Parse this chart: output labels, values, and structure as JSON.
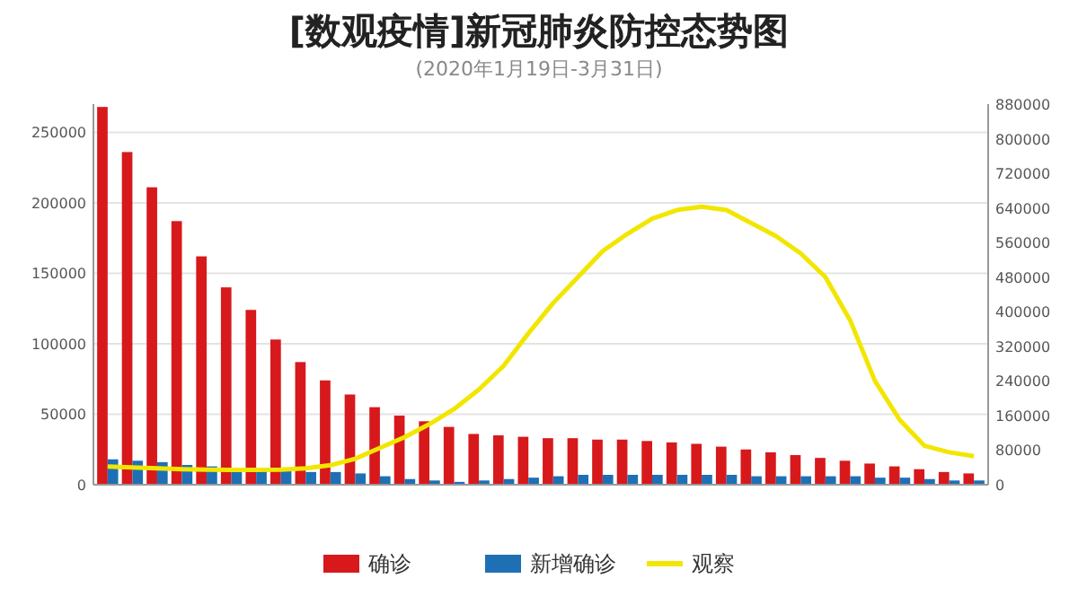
{
  "chart_data": {
    "type": "bar",
    "title": "[数观疫情]新冠肺炎防控态势图",
    "subtitle": "(2020年1月19日-3月31日)",
    "categories": [
      null,
      null,
      null,
      null,
      null,
      null,
      null,
      null,
      null,
      null,
      null,
      null,
      null,
      null,
      null,
      null,
      null,
      null,
      null,
      null,
      null,
      null,
      null,
      null,
      null,
      null,
      null,
      null,
      null,
      null,
      null,
      null,
      null,
      null,
      null,
      null
    ],
    "series": [
      {
        "name": "确诊",
        "color": "#d7191c",
        "values": [
          268000,
          236000,
          211000,
          187000,
          162000,
          140000,
          124000,
          103000,
          87000,
          74000,
          64000,
          55000,
          49000,
          45000,
          41000,
          36000,
          35000,
          34000,
          33000,
          33000,
          32000,
          32000,
          31000,
          30000,
          29000,
          27000,
          25000,
          23000,
          21000,
          19000,
          17000,
          15000,
          13000,
          11000,
          9000,
          8000
        ]
      },
      {
        "name": "新增确诊",
        "color": "#1f6fb5",
        "values": [
          18000,
          17000,
          16000,
          14000,
          13000,
          12000,
          11000,
          10000,
          9000,
          9000,
          8000,
          6000,
          4000,
          3000,
          2000,
          3000,
          4000,
          5000,
          6000,
          7000,
          7000,
          7000,
          7000,
          7000,
          7000,
          7000,
          6000,
          6000,
          6000,
          6000,
          6000,
          5000,
          5000,
          4000,
          3000,
          3000
        ]
      },
      {
        "name": "观察",
        "color": "#f2e600",
        "type": "line",
        "axis": "y2",
        "values": [
          42000,
          40000,
          38000,
          36000,
          35000,
          34000,
          34000,
          35000,
          38000,
          45000,
          60000,
          85000,
          110000,
          140000,
          175000,
          220000,
          275000,
          350000,
          420000,
          480000,
          540000,
          580000,
          615000,
          635000,
          643000,
          635000,
          605000,
          575000,
          535000,
          480000,
          380000,
          240000,
          150000,
          90000,
          75000,
          66000
        ]
      }
    ],
    "ylim": [
      0,
      270000
    ],
    "yticks": [
      0,
      50000,
      100000,
      150000,
      200000,
      250000
    ],
    "y2lim": [
      0,
      880000
    ],
    "y2ticks": [
      0,
      80000,
      160000,
      240000,
      320000,
      400000,
      480000,
      560000,
      640000,
      720000,
      800000,
      880000
    ],
    "grid": "y",
    "legend": "bottom",
    "line_style": "solid"
  }
}
